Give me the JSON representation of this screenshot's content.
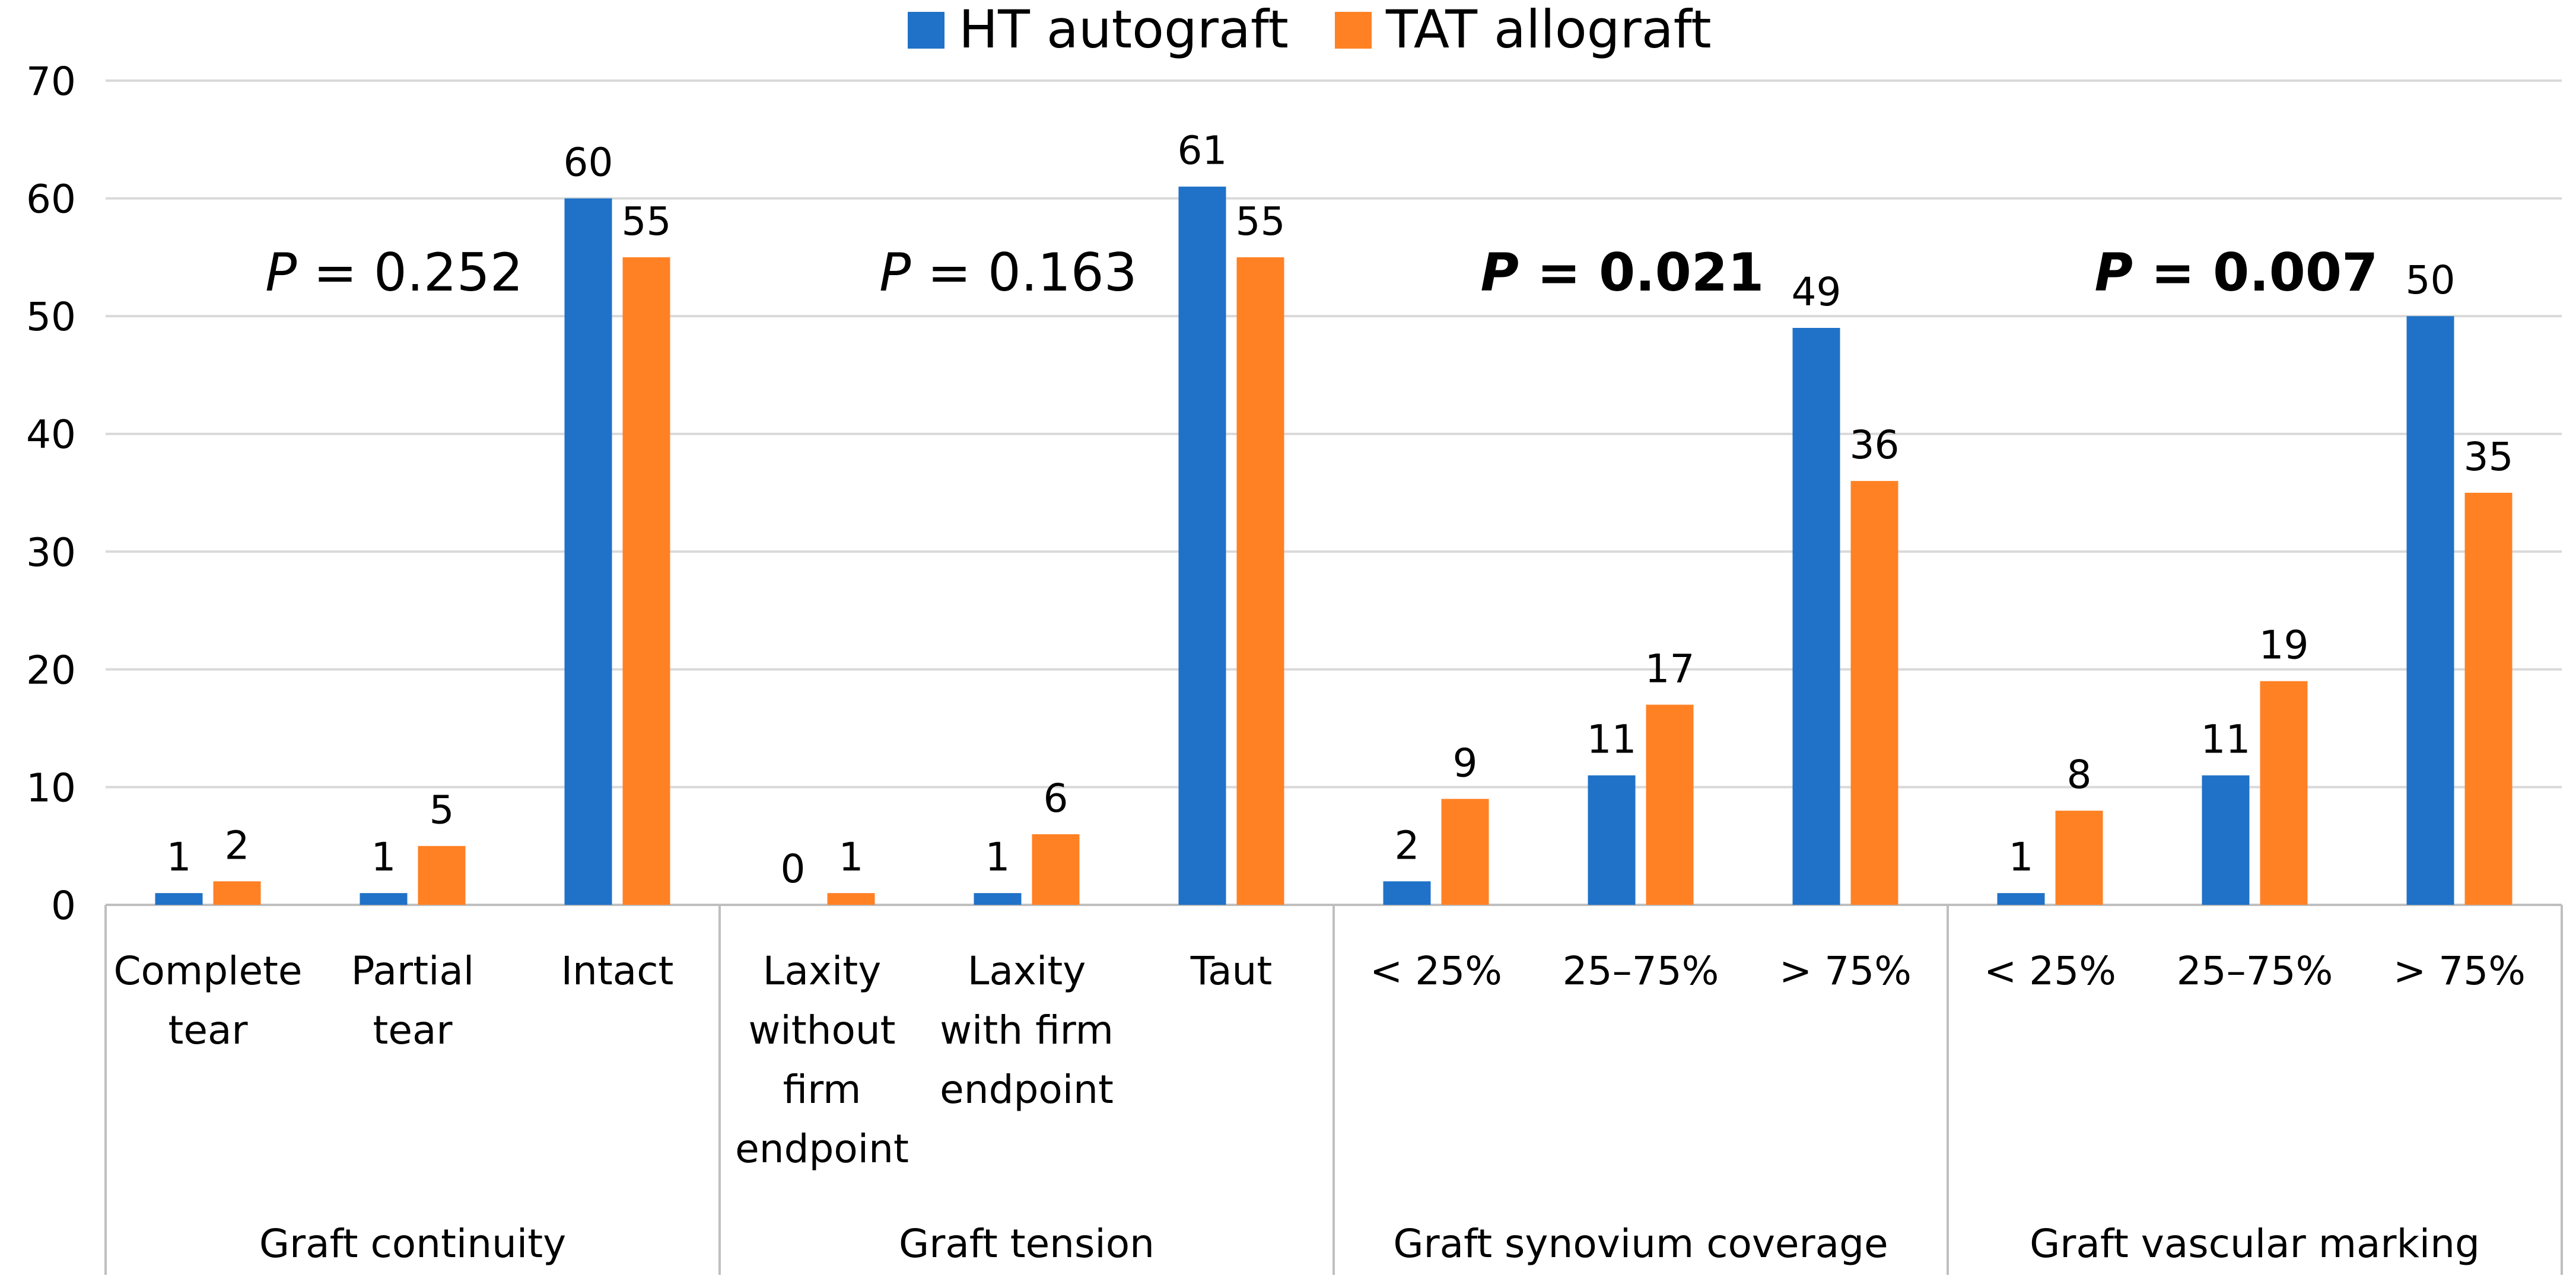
{
  "chart_data": {
    "type": "bar",
    "legend": {
      "position": "top",
      "entries": [
        {
          "name": "HT autograft",
          "color": "#1F72C7"
        },
        {
          "name": "TAT allograft",
          "color": "#FF8124"
        }
      ]
    },
    "ylim": [
      0,
      70
    ],
    "yticks": [
      "0",
      "10",
      "20",
      "30",
      "40",
      "50",
      "60",
      "70"
    ],
    "grid": true,
    "series": [
      {
        "name": "HT autograft",
        "color": "#1F72C7",
        "values": [
          1,
          1,
          60,
          0,
          1,
          61,
          2,
          11,
          49,
          1,
          11,
          50
        ]
      },
      {
        "name": "TAT allograft",
        "color": "#FF8124",
        "values": [
          2,
          5,
          55,
          1,
          6,
          55,
          9,
          17,
          36,
          8,
          19,
          35
        ]
      }
    ],
    "groups": [
      {
        "label": "Graft continuity",
        "categories": [
          {
            "lines": [
              "Complete",
              "tear"
            ]
          },
          {
            "lines": [
              "Partial",
              "tear"
            ]
          },
          {
            "lines": [
              "Intact"
            ]
          }
        ],
        "annotation": {
          "p": "P",
          "eq": " =  0.252",
          "bold": false
        }
      },
      {
        "label": "Graft tension",
        "categories": [
          {
            "lines": [
              "Laxity",
              "without",
              "firm",
              "endpoint"
            ]
          },
          {
            "lines": [
              "Laxity",
              "with firm",
              "endpoint"
            ]
          },
          {
            "lines": [
              "Taut"
            ]
          }
        ],
        "annotation": {
          "p": "P",
          "eq": " =  0.163",
          "bold": false
        }
      },
      {
        "label": "Graft synovium coverage",
        "categories": [
          {
            "lines": [
              "< 25%"
            ]
          },
          {
            "lines": [
              "25–75%"
            ]
          },
          {
            "lines": [
              "> 75%"
            ]
          }
        ],
        "annotation": {
          "p": "P",
          "eq": " =  0.021",
          "bold": true
        }
      },
      {
        "label": "Graft vascular marking",
        "categories": [
          {
            "lines": [
              "< 25%"
            ]
          },
          {
            "lines": [
              "25–75%"
            ]
          },
          {
            "lines": [
              "> 75%"
            ]
          }
        ],
        "annotation": {
          "p": "P",
          "eq": " =  0.007",
          "bold": true
        }
      }
    ]
  }
}
